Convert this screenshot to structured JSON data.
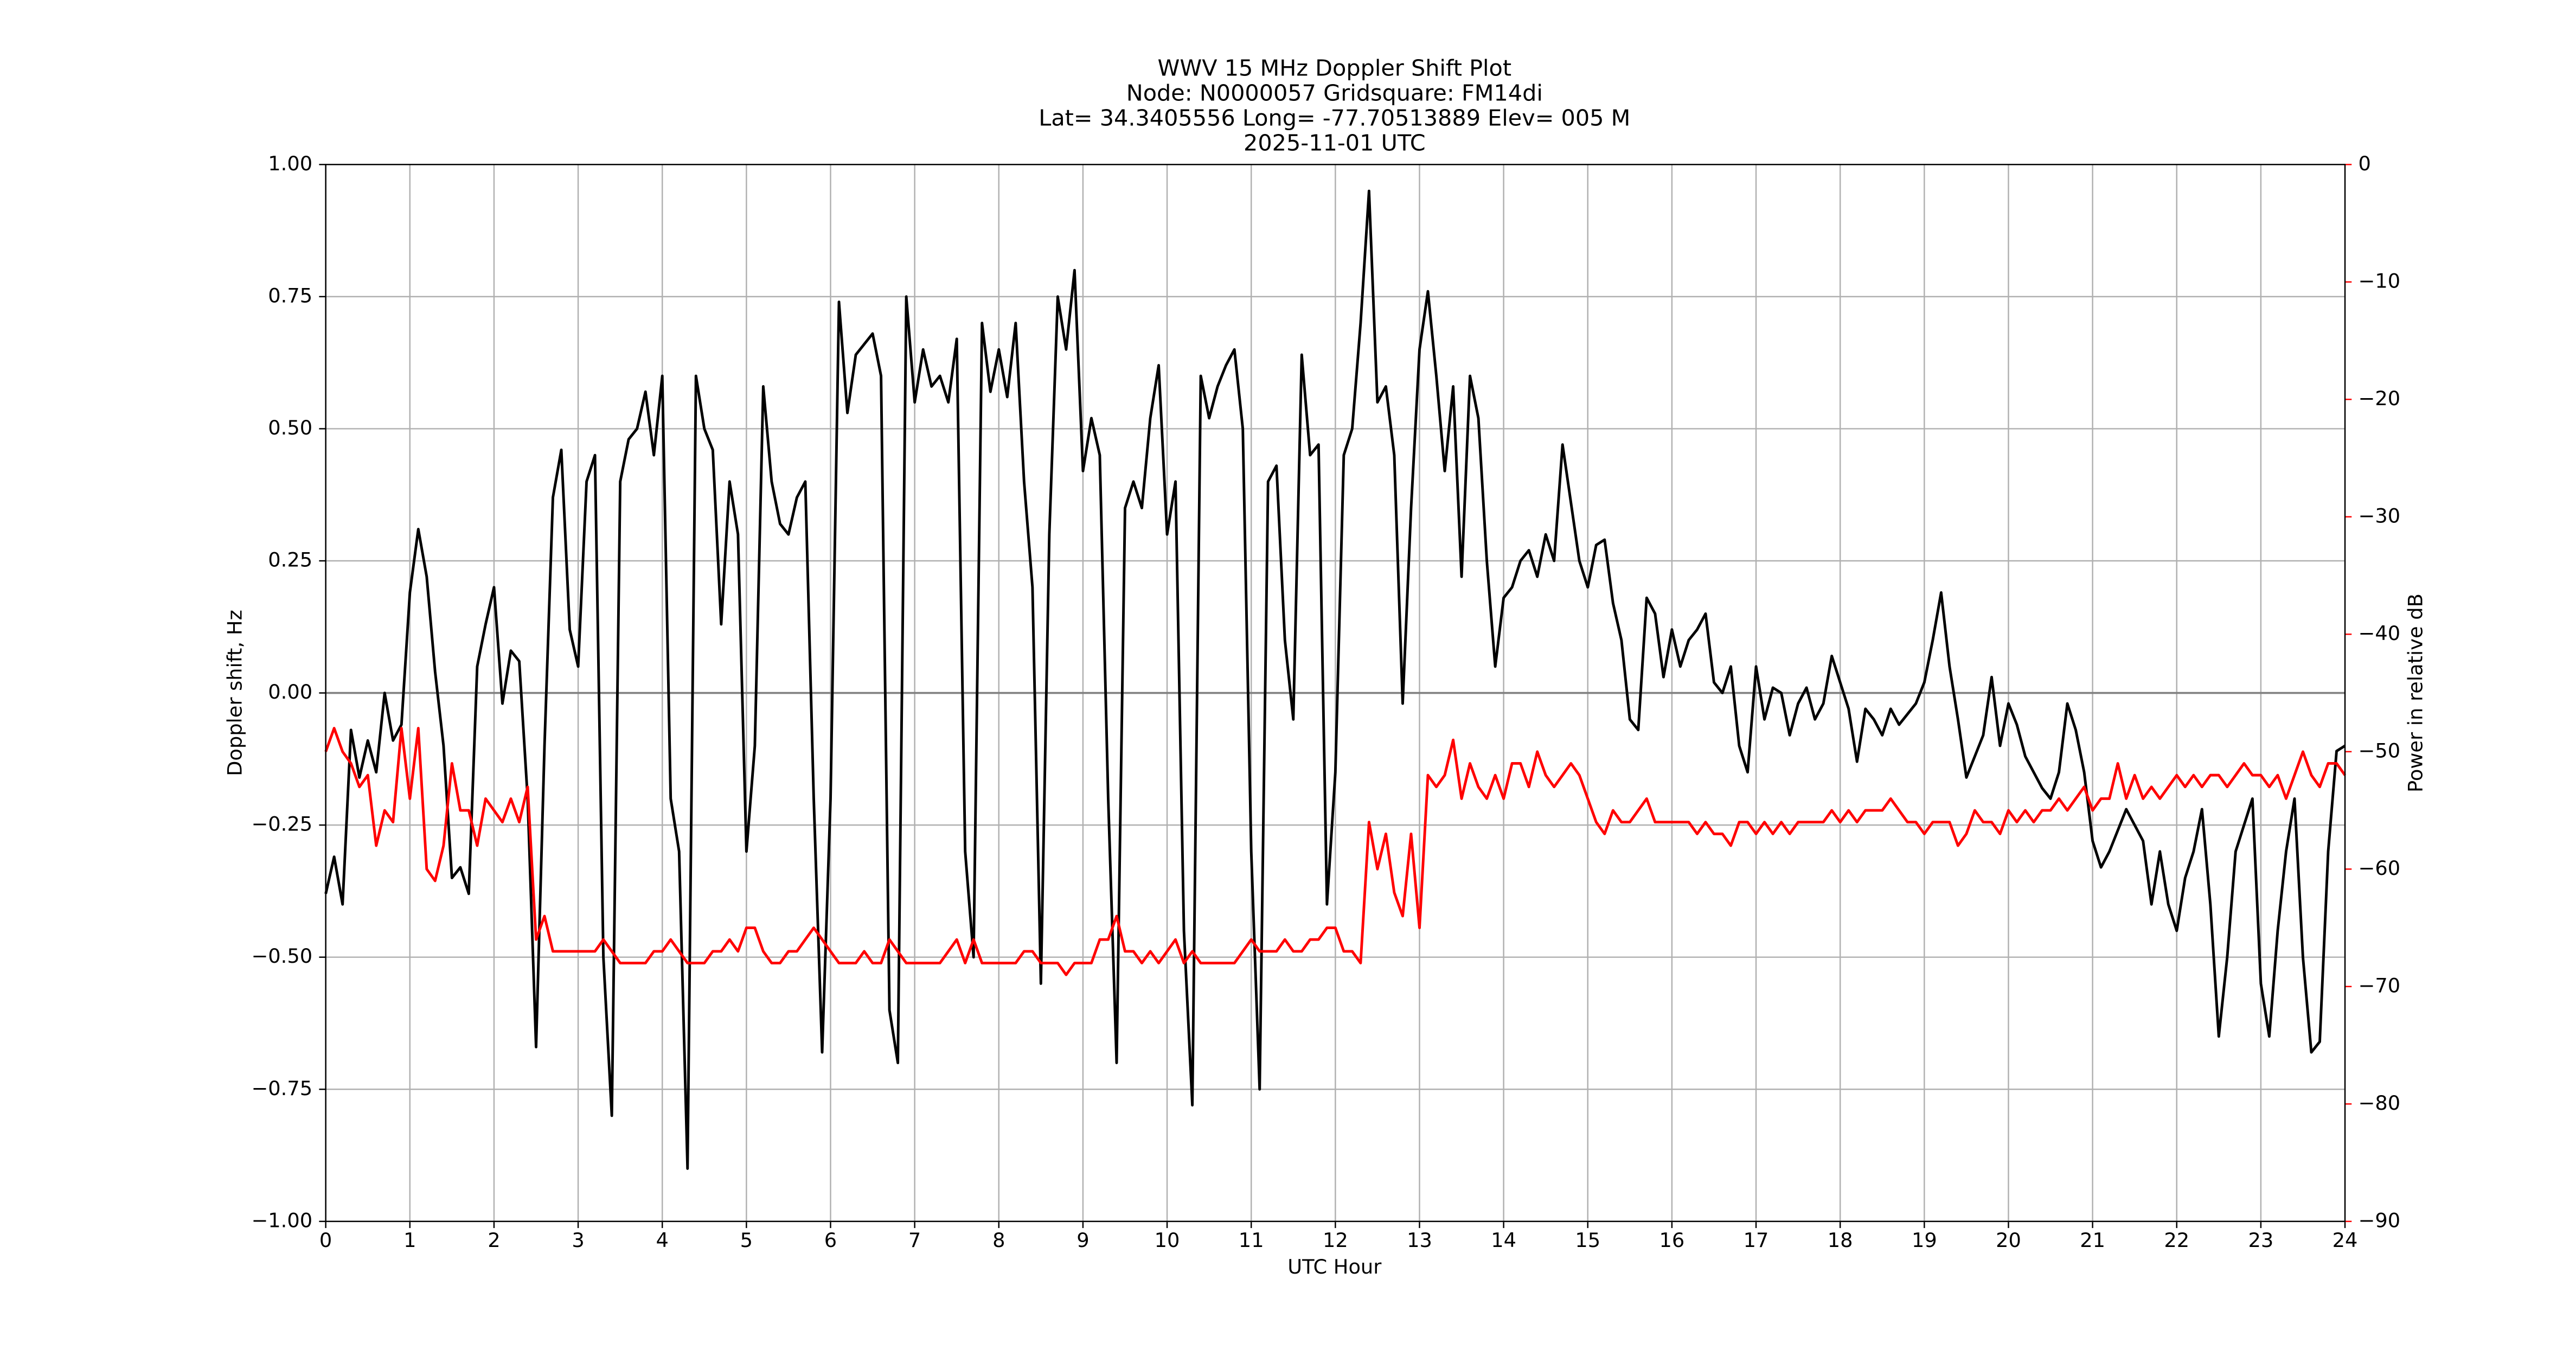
{
  "chart_data": {
    "type": "line",
    "title": "WWV 15 MHz Doppler Shift Plot",
    "subtitle": [
      "Node:  N0000057     Gridsquare:  FM14di",
      "Lat= 34.3405556    Long= -77.70513889    Elev= 005 M",
      "2025-11-01  UTC"
    ],
    "xlabel": "UTC Hour",
    "ylabel": "Doppler shift, Hz",
    "y2label": "Power in relative dB",
    "y2color": "#ff0000",
    "grid": true,
    "axhline": 0,
    "xlim": [
      0,
      24
    ],
    "xticks": [
      0,
      1,
      2,
      3,
      4,
      5,
      6,
      7,
      8,
      9,
      10,
      11,
      12,
      13,
      14,
      15,
      16,
      17,
      18,
      19,
      20,
      21,
      22,
      23,
      24
    ],
    "ylim": [
      -1,
      1
    ],
    "yticks": [
      {
        "value": -1,
        "label": "−1.00"
      },
      {
        "value": -0.75,
        "label": "−0.75"
      },
      {
        "value": -0.5,
        "label": "−0.50"
      },
      {
        "value": -0.25,
        "label": "−0.25"
      },
      {
        "value": 0,
        "label": "0.00"
      },
      {
        "value": 0.25,
        "label": "0.25"
      },
      {
        "value": 0.5,
        "label": "0.50"
      },
      {
        "value": 0.75,
        "label": "0.75"
      },
      {
        "value": 1,
        "label": "1.00"
      }
    ],
    "y2lim": [
      -90,
      0
    ],
    "y2ticks": [
      {
        "value": -90,
        "label": "−90"
      },
      {
        "value": -80,
        "label": "−80"
      },
      {
        "value": -70,
        "label": "−70"
      },
      {
        "value": -60,
        "label": "−60"
      },
      {
        "value": -50,
        "label": "−50"
      },
      {
        "value": -40,
        "label": "−40"
      },
      {
        "value": -30,
        "label": "−30"
      },
      {
        "value": -20,
        "label": "−20"
      },
      {
        "value": -10,
        "label": "−10"
      },
      0
    ],
    "x": [
      0,
      0.1,
      0.2,
      0.3,
      0.4,
      0.5,
      0.6,
      0.7,
      0.8,
      0.9,
      1,
      1.1,
      1.2,
      1.3,
      1.4,
      1.5,
      1.6,
      1.7,
      1.8,
      1.9,
      2,
      2.1,
      2.2,
      2.3,
      2.4,
      2.5,
      2.6,
      2.7,
      2.8,
      2.9,
      3,
      3.1,
      3.2,
      3.3,
      3.4,
      3.5,
      3.6,
      3.7,
      3.8,
      3.9,
      4,
      4.1,
      4.2,
      4.3,
      4.4,
      4.5,
      4.6,
      4.7,
      4.8,
      4.9,
      5,
      5.1,
      5.2,
      5.3,
      5.4,
      5.5,
      5.6,
      5.7,
      5.8,
      5.9,
      6,
      6.1,
      6.2,
      6.3,
      6.4,
      6.5,
      6.6,
      6.7,
      6.8,
      6.9,
      7,
      7.1,
      7.2,
      7.3,
      7.4,
      7.5,
      7.6,
      7.7,
      7.8,
      7.9,
      8,
      8.1,
      8.2,
      8.3,
      8.4,
      8.5,
      8.6,
      8.7,
      8.8,
      8.9,
      9,
      9.1,
      9.2,
      9.3,
      9.4,
      9.5,
      9.6,
      9.7,
      9.8,
      9.9,
      10,
      10.1,
      10.2,
      10.3,
      10.4,
      10.5,
      10.6,
      10.7,
      10.8,
      10.9,
      11,
      11.1,
      11.2,
      11.3,
      11.4,
      11.5,
      11.6,
      11.7,
      11.8,
      11.9,
      12,
      12.1,
      12.2,
      12.3,
      12.4,
      12.5,
      12.6,
      12.7,
      12.8,
      12.9,
      13,
      13.1,
      13.2,
      13.3,
      13.4,
      13.5,
      13.6,
      13.7,
      13.8,
      13.9,
      14,
      14.1,
      14.2,
      14.3,
      14.4,
      14.5,
      14.6,
      14.7,
      14.8,
      14.9,
      15,
      15.1,
      15.2,
      15.3,
      15.4,
      15.5,
      15.6,
      15.7,
      15.8,
      15.9,
      16,
      16.1,
      16.2,
      16.3,
      16.4,
      16.5,
      16.6,
      16.7,
      16.8,
      16.9,
      17,
      17.1,
      17.2,
      17.3,
      17.4,
      17.5,
      17.6,
      17.7,
      17.8,
      17.9,
      18,
      18.1,
      18.2,
      18.3,
      18.4,
      18.5,
      18.6,
      18.7,
      18.8,
      18.9,
      19,
      19.1,
      19.2,
      19.3,
      19.4,
      19.5,
      19.6,
      19.7,
      19.8,
      19.9,
      20,
      20.1,
      20.2,
      20.3,
      20.4,
      20.5,
      20.6,
      20.7,
      20.8,
      20.9,
      21,
      21.1,
      21.2,
      21.3,
      21.4,
      21.5,
      21.6,
      21.7,
      21.8,
      21.9,
      22,
      22.1,
      22.2,
      22.3,
      22.4,
      22.5,
      22.6,
      22.7,
      22.8,
      22.9,
      23,
      23.1,
      23.2,
      23.3,
      23.4,
      23.5,
      23.6,
      23.7,
      23.8,
      23.9,
      24
    ],
    "series": [
      {
        "color": "#000000",
        "values": [
          -0.38,
          -0.31,
          -0.4,
          -0.07,
          -0.16,
          -0.09,
          -0.15,
          0.0,
          -0.09,
          -0.06,
          0.19,
          0.31,
          0.22,
          0.04,
          -0.1,
          -0.35,
          -0.33,
          -0.38,
          0.05,
          0.13,
          0.2,
          -0.02,
          0.08,
          0.06,
          -0.2,
          -0.67,
          -0.1,
          0.37,
          0.46,
          0.12,
          0.05,
          0.4,
          0.45,
          -0.5,
          -0.8,
          0.4,
          0.48,
          0.5,
          0.57,
          0.45,
          0.6,
          -0.2,
          -0.3,
          -0.9,
          0.6,
          0.5,
          0.46,
          0.13,
          0.4,
          0.3,
          -0.3,
          -0.1,
          0.58,
          0.4,
          0.32,
          0.3,
          0.37,
          0.4,
          -0.2,
          -0.68,
          -0.2,
          0.74,
          0.53,
          0.64,
          0.66,
          0.68,
          0.6,
          -0.6,
          -0.7,
          0.75,
          0.55,
          0.65,
          0.58,
          0.6,
          0.55,
          0.67,
          -0.3,
          -0.5,
          0.7,
          0.57,
          0.65,
          0.56,
          0.7,
          0.4,
          0.2,
          -0.55,
          0.3,
          0.75,
          0.65,
          0.8,
          0.42,
          0.52,
          0.45,
          -0.2,
          -0.7,
          0.35,
          0.4,
          0.35,
          0.52,
          0.62,
          0.3,
          0.4,
          -0.45,
          -0.78,
          0.6,
          0.52,
          0.58,
          0.62,
          0.65,
          0.5,
          -0.3,
          -0.75,
          0.4,
          0.43,
          0.1,
          -0.05,
          0.64,
          0.45,
          0.47,
          -0.4,
          -0.15,
          0.45,
          0.5,
          0.7,
          0.95,
          0.55,
          0.58,
          0.45,
          -0.02,
          0.35,
          0.65,
          0.76,
          0.6,
          0.42,
          0.58,
          0.22,
          0.6,
          0.52,
          0.25,
          0.05,
          0.18,
          0.2,
          0.25,
          0.27,
          0.22,
          0.3,
          0.25,
          0.47,
          0.36,
          0.25,
          0.2,
          0.28,
          0.29,
          0.17,
          0.1,
          -0.05,
          -0.07,
          0.18,
          0.15,
          0.03,
          0.12,
          0.05,
          0.1,
          0.12,
          0.15,
          0.02,
          0.0,
          0.05,
          -0.1,
          -0.15,
          0.05,
          -0.05,
          0.01,
          0.0,
          -0.08,
          -0.02,
          0.01,
          -0.05,
          -0.02,
          0.07,
          0.02,
          -0.03,
          -0.13,
          -0.03,
          -0.05,
          -0.08,
          -0.03,
          -0.06,
          -0.04,
          -0.02,
          0.02,
          0.1,
          0.19,
          0.05,
          -0.05,
          -0.16,
          -0.12,
          -0.08,
          0.03,
          -0.1,
          -0.02,
          -0.06,
          -0.12,
          -0.15,
          -0.18,
          -0.2,
          -0.15,
          -0.02,
          -0.07,
          -0.15,
          -0.28,
          -0.33,
          -0.3,
          -0.26,
          -0.22,
          -0.25,
          -0.28,
          -0.4,
          -0.3,
          -0.4,
          -0.45,
          -0.35,
          -0.3,
          -0.22,
          -0.4,
          -0.65,
          -0.5,
          -0.3,
          -0.25,
          -0.2,
          -0.55,
          -0.65,
          -0.45,
          -0.3,
          -0.2,
          -0.5,
          -0.68,
          -0.66,
          -0.3,
          -0.11,
          -0.1
        ]
      },
      {
        "color": "#ff0000",
        "axis": "y2",
        "values": [
          -50,
          -48,
          -50,
          -51,
          -53,
          -52,
          -58,
          -55,
          -56,
          -48,
          -54,
          -48,
          -60,
          -61,
          -58,
          -51,
          -55,
          -55,
          -58,
          -54,
          -55,
          -56,
          -54,
          -56,
          -53,
          -66,
          -64,
          -67,
          -67,
          -67,
          -67,
          -67,
          -67,
          -66,
          -67,
          -68,
          -68,
          -68,
          -68,
          -67,
          -67,
          -66,
          -67,
          -68,
          -68,
          -68,
          -67,
          -67,
          -66,
          -67,
          -65,
          -65,
          -67,
          -68,
          -68,
          -67,
          -67,
          -66,
          -65,
          -66,
          -67,
          -68,
          -68,
          -68,
          -67,
          -68,
          -68,
          -66,
          -67,
          -68,
          -68,
          -68,
          -68,
          -68,
          -67,
          -66,
          -68,
          -66,
          -68,
          -68,
          -68,
          -68,
          -68,
          -67,
          -67,
          -68,
          -68,
          -68,
          -69,
          -68,
          -68,
          -68,
          -66,
          -66,
          -64,
          -67,
          -67,
          -68,
          -67,
          -68,
          -67,
          -66,
          -68,
          -67,
          -68,
          -68,
          -68,
          -68,
          -68,
          -67,
          -66,
          -67,
          -67,
          -67,
          -66,
          -67,
          -67,
          -66,
          -66,
          -65,
          -65,
          -67,
          -67,
          -68,
          -56,
          -60,
          -57,
          -62,
          -64,
          -57,
          -65,
          -52,
          -53,
          -52,
          -49,
          -54,
          -51,
          -53,
          -54,
          -52,
          -54,
          -51,
          -51,
          -53,
          -50,
          -52,
          -53,
          -52,
          -51,
          -52,
          -54,
          -56,
          -57,
          -55,
          -56,
          -56,
          -55,
          -54,
          -56,
          -56,
          -56,
          -56,
          -56,
          -57,
          -56,
          -57,
          -57,
          -58,
          -56,
          -56,
          -57,
          -56,
          -57,
          -56,
          -57,
          -56,
          -56,
          -56,
          -56,
          -55,
          -56,
          -55,
          -56,
          -55,
          -55,
          -55,
          -54,
          -55,
          -56,
          -56,
          -57,
          -56,
          -56,
          -56,
          -58,
          -57,
          -55,
          -56,
          -56,
          -57,
          -55,
          -56,
          -55,
          -56,
          -55,
          -55,
          -54,
          -55,
          -54,
          -53,
          -55,
          -54,
          -54,
          -51,
          -54,
          -52,
          -54,
          -53,
          -54,
          -53,
          -52,
          -53,
          -52,
          -53,
          -52,
          -52,
          -53,
          -52,
          -51,
          -52,
          -52,
          -53,
          -52,
          -54,
          -52,
          -50,
          -52,
          -53,
          -51,
          -51,
          -52
        ]
      }
    ]
  }
}
